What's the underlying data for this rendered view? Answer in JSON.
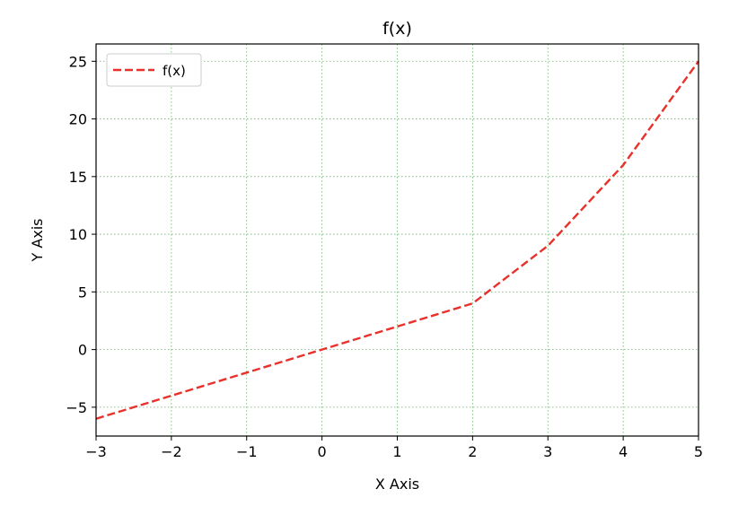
{
  "chart_data": {
    "type": "line",
    "title": "f(x)",
    "xlabel": "X Axis",
    "ylabel": "Y Axis",
    "xlim": [
      -3,
      5
    ],
    "ylim": [
      -7.5,
      26.5
    ],
    "xticks": [
      -3,
      -2,
      -1,
      0,
      1,
      2,
      3,
      4,
      5
    ],
    "yticks": [
      -5,
      0,
      5,
      10,
      15,
      20,
      25
    ],
    "xtick_labels": [
      "−3",
      "−2",
      "−1",
      "0",
      "1",
      "2",
      "3",
      "4",
      "5"
    ],
    "ytick_labels": [
      "−5",
      "0",
      "5",
      "10",
      "15",
      "20",
      "25"
    ],
    "grid": true,
    "grid_color": "#2ca02c",
    "legend_position": "upper-left",
    "series": [
      {
        "name": "f(x)",
        "color": "#e8312b",
        "linestyle": "dashed",
        "x": [
          -3,
          -2,
          -1,
          0,
          1,
          2,
          3,
          4,
          5
        ],
        "y": [
          -6,
          -4,
          -2,
          0,
          2,
          4,
          9,
          16,
          25
        ]
      }
    ]
  }
}
